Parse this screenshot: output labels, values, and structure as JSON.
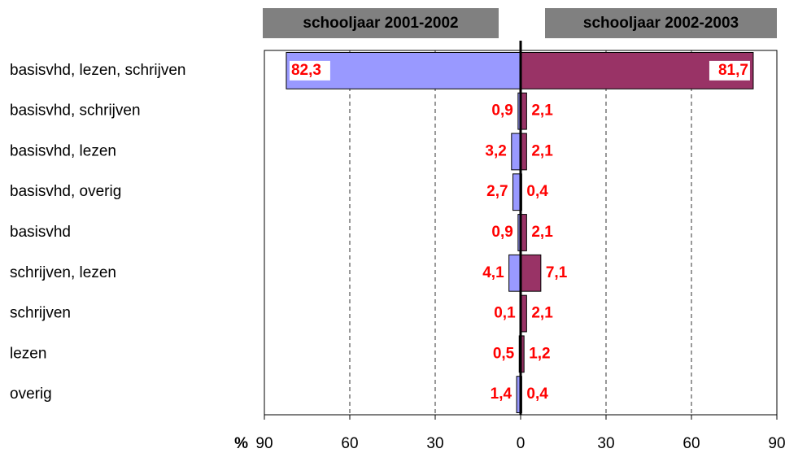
{
  "chart_data": {
    "type": "butterfly-bar",
    "categories": [
      "basisvhd, lezen, schrijven",
      "basisvhd, schrijven",
      "basisvhd, lezen",
      "basisvhd, overig",
      "basisvhd",
      "schrijven, lezen",
      "schrijven",
      "lezen",
      "overig"
    ],
    "series": [
      {
        "name": "schooljaar 2001-2002",
        "color": "#9999ff",
        "side": "left",
        "values": [
          82.3,
          0.9,
          3.2,
          2.7,
          0.9,
          4.1,
          0.1,
          0.5,
          1.4
        ],
        "value_labels": [
          "82,3",
          "0,9",
          "3,2",
          "2,7",
          "0,9",
          "4,1",
          "0,1",
          "0,5",
          "1,4"
        ]
      },
      {
        "name": "schooljaar 2002-2003",
        "color": "#993366",
        "side": "right",
        "values": [
          81.7,
          2.1,
          2.1,
          0.4,
          2.1,
          7.1,
          2.1,
          1.2,
          0.4
        ],
        "value_labels": [
          "81,7",
          "2,1",
          "2,1",
          "0,4",
          "2,1",
          "7,1",
          "2,1",
          "1,2",
          "0,4"
        ]
      }
    ],
    "x_label": "%",
    "xlim": [
      -90,
      90
    ],
    "xticks": [
      {
        "value": -90,
        "label": "90"
      },
      {
        "value": -60,
        "label": "60"
      },
      {
        "value": -30,
        "label": "30"
      },
      0,
      30,
      60,
      90
    ],
    "grid": true
  }
}
